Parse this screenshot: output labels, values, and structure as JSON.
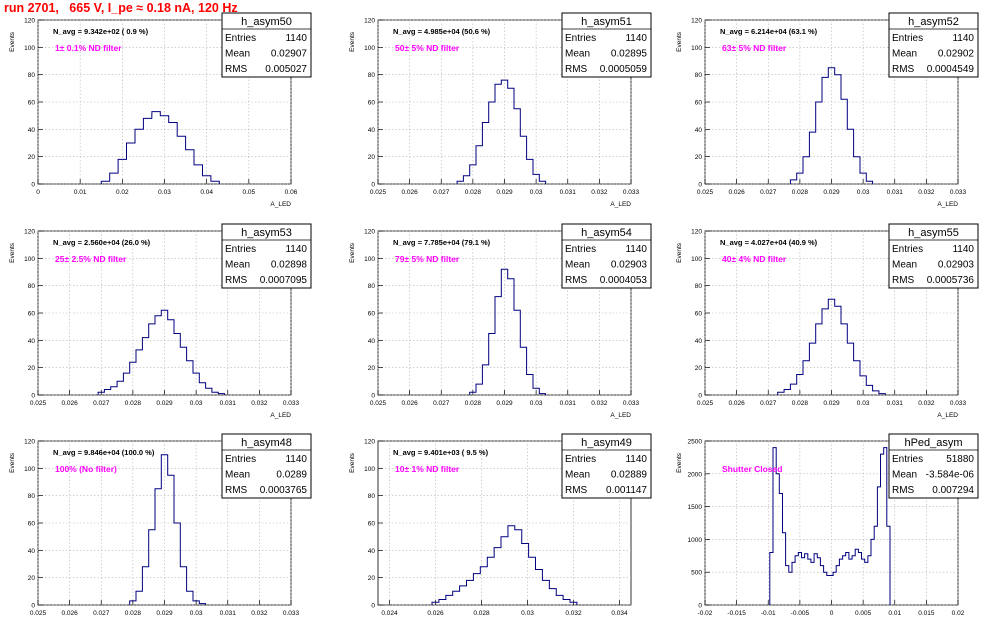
{
  "title": "run 2701,   665 V, I_pe ≈ 0.18 nA, 120 Hz",
  "colors": {
    "title": "#ff0000",
    "annotation": "#ff00ff",
    "hist": "#000080",
    "grid": "#b4b4b4",
    "axis": "#000000"
  },
  "chart_data": [
    {
      "type": "histogram",
      "name": "h_asym50",
      "ylabel": "Events",
      "xlabel": "A_LED",
      "xlim": [
        0,
        0.06
      ],
      "ylim": [
        0,
        120
      ],
      "xticks": [
        "0",
        "0.01",
        "0.02",
        "0.03",
        "0.04",
        "0.05",
        "0.06"
      ],
      "yticks": [
        "0",
        "20",
        "40",
        "60",
        "80",
        "100",
        "120"
      ],
      "navg": "N_avg = 9.342e+02 ( 0.9 %)",
      "annotation": "1± 0.1% ND filter",
      "stats": [
        [
          "Entries",
          "1140"
        ],
        [
          "Mean",
          "0.02907"
        ],
        [
          "RMS",
          "0.005027"
        ]
      ],
      "x": [
        0.016,
        0.018,
        0.02,
        0.022,
        0.024,
        0.026,
        0.028,
        0.03,
        0.032,
        0.034,
        0.036,
        0.038,
        0.04,
        0.042
      ],
      "values": [
        2,
        8,
        18,
        30,
        40,
        48,
        53,
        50,
        45,
        35,
        25,
        14,
        6,
        2
      ]
    },
    {
      "type": "histogram",
      "name": "h_asym51",
      "ylabel": "Events",
      "xlabel": "A_LED",
      "xlim": [
        0.025,
        0.033
      ],
      "ylim": [
        0,
        120
      ],
      "xticks": [
        "0.025",
        "0.026",
        "0.027",
        "0.028",
        "0.029",
        "0.03",
        "0.031",
        "0.032",
        "0.033"
      ],
      "yticks": [
        "0",
        "20",
        "40",
        "60",
        "80",
        "100",
        "120"
      ],
      "navg": "N_avg = 4.985e+04 (50.6 %)",
      "annotation": "50± 5% ND filter",
      "stats": [
        [
          "Entries",
          "1140"
        ],
        [
          "Mean",
          "0.02895"
        ],
        [
          "RMS",
          "0.0005059"
        ]
      ],
      "x": [
        0.0276,
        0.0278,
        0.028,
        0.0282,
        0.0284,
        0.0286,
        0.0288,
        0.029,
        0.0292,
        0.0294,
        0.0296,
        0.0298,
        0.03,
        0.0302
      ],
      "values": [
        2,
        6,
        14,
        28,
        45,
        60,
        73,
        76,
        70,
        55,
        35,
        18,
        7,
        2
      ]
    },
    {
      "type": "histogram",
      "name": "h_asym52",
      "ylabel": "Events",
      "xlabel": "A_LED",
      "xlim": [
        0.025,
        0.033
      ],
      "ylim": [
        0,
        120
      ],
      "xticks": [
        "0.025",
        "0.026",
        "0.027",
        "0.028",
        "0.029",
        "0.03",
        "0.031",
        "0.032",
        "0.033"
      ],
      "yticks": [
        "0",
        "20",
        "40",
        "60",
        "80",
        "100",
        "120"
      ],
      "navg": "N_avg = 6.214e+04 (63.1 %)",
      "annotation": "63± 5% ND filter",
      "stats": [
        [
          "Entries",
          "1140"
        ],
        [
          "Mean",
          "0.02902"
        ],
        [
          "RMS",
          "0.0004549"
        ]
      ],
      "x": [
        0.0278,
        0.028,
        0.0282,
        0.0284,
        0.0286,
        0.0288,
        0.029,
        0.0292,
        0.0294,
        0.0296,
        0.0298,
        0.03,
        0.0302
      ],
      "values": [
        3,
        8,
        20,
        38,
        60,
        78,
        85,
        80,
        62,
        40,
        20,
        8,
        2
      ]
    },
    {
      "type": "histogram",
      "name": "h_asym53",
      "ylabel": "Events",
      "xlabel": "A_LED",
      "xlim": [
        0.025,
        0.033
      ],
      "ylim": [
        0,
        120
      ],
      "xticks": [
        "0.025",
        "0.026",
        "0.027",
        "0.028",
        "0.029",
        "0.03",
        "0.031",
        "0.032",
        "0.033"
      ],
      "yticks": [
        "0",
        "20",
        "40",
        "60",
        "80",
        "100",
        "120"
      ],
      "navg": "N_avg = 2.560e+04 (26.0 %)",
      "annotation": "25± 2.5% ND filter",
      "stats": [
        [
          "Entries",
          "1140"
        ],
        [
          "Mean",
          "0.02898"
        ],
        [
          "RMS",
          "0.0007095"
        ]
      ],
      "x": [
        0.027,
        0.0272,
        0.0274,
        0.0276,
        0.0278,
        0.028,
        0.0282,
        0.0284,
        0.0286,
        0.0288,
        0.029,
        0.0292,
        0.0294,
        0.0296,
        0.0298,
        0.03,
        0.0302,
        0.0304,
        0.0306,
        0.0308
      ],
      "values": [
        2,
        4,
        6,
        10,
        16,
        24,
        33,
        42,
        52,
        58,
        62,
        55,
        45,
        35,
        25,
        16,
        9,
        5,
        2,
        1
      ]
    },
    {
      "type": "histogram",
      "name": "h_asym54",
      "ylabel": "Events",
      "xlabel": "A_LED",
      "xlim": [
        0.025,
        0.033
      ],
      "ylim": [
        0,
        120
      ],
      "xticks": [
        "0.025",
        "0.026",
        "0.027",
        "0.028",
        "0.029",
        "0.03",
        "0.031",
        "0.032",
        "0.033"
      ],
      "yticks": [
        "0",
        "20",
        "40",
        "60",
        "80",
        "100",
        "120"
      ],
      "navg": "N_avg = 7.785e+04 (79.1 %)",
      "annotation": "79± 5% ND filter",
      "stats": [
        [
          "Entries",
          "1140"
        ],
        [
          "Mean",
          "0.02903"
        ],
        [
          "RMS",
          "0.0004053"
        ]
      ],
      "x": [
        0.028,
        0.0282,
        0.0284,
        0.0286,
        0.0288,
        0.029,
        0.0292,
        0.0294,
        0.0296,
        0.0298,
        0.03,
        0.0302
      ],
      "values": [
        2,
        8,
        22,
        45,
        72,
        92,
        85,
        62,
        35,
        15,
        5,
        1
      ]
    },
    {
      "type": "histogram",
      "name": "h_asym55",
      "ylabel": "Events",
      "xlabel": "A_LED",
      "xlim": [
        0.025,
        0.033
      ],
      "ylim": [
        0,
        120
      ],
      "xticks": [
        "0.025",
        "0.026",
        "0.027",
        "0.028",
        "0.029",
        "0.03",
        "0.031",
        "0.032",
        "0.033"
      ],
      "yticks": [
        "0",
        "20",
        "40",
        "60",
        "80",
        "100",
        "120"
      ],
      "navg": "N_avg = 4.027e+04 (40.9 %)",
      "annotation": "40± 4% ND filter",
      "stats": [
        [
          "Entries",
          "1140"
        ],
        [
          "Mean",
          "0.02903"
        ],
        [
          "RMS",
          "0.0005736"
        ]
      ],
      "x": [
        0.0274,
        0.0276,
        0.0278,
        0.028,
        0.0282,
        0.0284,
        0.0286,
        0.0288,
        0.029,
        0.0292,
        0.0294,
        0.0296,
        0.0298,
        0.03,
        0.0302,
        0.0304,
        0.0306
      ],
      "values": [
        2,
        4,
        8,
        15,
        25,
        38,
        52,
        63,
        70,
        65,
        52,
        38,
        25,
        14,
        7,
        3,
        1
      ]
    },
    {
      "type": "histogram",
      "name": "h_asym48",
      "ylabel": "Events",
      "xlabel": "A_LED",
      "xlim": [
        0.025,
        0.033
      ],
      "ylim": [
        0,
        120
      ],
      "xticks": [
        "0.025",
        "0.026",
        "0.027",
        "0.028",
        "0.029",
        "0.03",
        "0.031",
        "0.032",
        "0.033"
      ],
      "yticks": [
        "0",
        "20",
        "40",
        "60",
        "80",
        "100",
        "120"
      ],
      "navg": "N_avg = 9.846e+04 (100.0 %)",
      "annotation": "100% (No filter)",
      "stats": [
        [
          "Entries",
          "1140"
        ],
        [
          "Mean",
          "0.0289"
        ],
        [
          "RMS",
          "0.0003765"
        ]
      ],
      "x": [
        0.028,
        0.0282,
        0.0284,
        0.0286,
        0.0288,
        0.029,
        0.0292,
        0.0294,
        0.0296,
        0.0298,
        0.03,
        0.0302
      ],
      "values": [
        3,
        10,
        28,
        55,
        85,
        110,
        95,
        60,
        28,
        10,
        3,
        1
      ]
    },
    {
      "type": "histogram",
      "name": "h_asym49",
      "ylabel": "Events",
      "xlabel": "A_LED",
      "xlim": [
        0.0235,
        0.0345
      ],
      "ylim": [
        0,
        120
      ],
      "xticks": [
        "0.024",
        "0.026",
        "0.028",
        "0.03",
        "0.032",
        "0.034"
      ],
      "yticks": [
        "0",
        "20",
        "40",
        "60",
        "80",
        "100",
        "120"
      ],
      "navg": "N_avg = 9.401e+03 ( 9.5 %)",
      "annotation": "10± 1% ND filter",
      "stats": [
        [
          "Entries",
          "1140"
        ],
        [
          "Mean",
          "0.02889"
        ],
        [
          "RMS",
          "0.001147"
        ]
      ],
      "x": [
        0.026,
        0.0263,
        0.0266,
        0.0269,
        0.0272,
        0.0275,
        0.0278,
        0.0281,
        0.0284,
        0.0287,
        0.029,
        0.0293,
        0.0296,
        0.0299,
        0.0302,
        0.0305,
        0.0308,
        0.0311,
        0.0314,
        0.0317,
        0.032
      ],
      "values": [
        2,
        4,
        7,
        10,
        14,
        18,
        23,
        28,
        35,
        42,
        50,
        58,
        55,
        45,
        35,
        26,
        18,
        12,
        7,
        4,
        2
      ]
    },
    {
      "type": "histogram",
      "name": "hPed_asym",
      "ylabel": "Events",
      "xlabel": "A_LED",
      "xlim": [
        -0.02,
        0.02
      ],
      "ylim": [
        0,
        2500
      ],
      "xticks": [
        "-0.02",
        "-0.015",
        "-0.01",
        "-0.005",
        "0",
        "0.005",
        "0.01",
        "0.015",
        "0.02"
      ],
      "yticks": [
        "0",
        "500",
        "1000",
        "1500",
        "2000",
        "2500"
      ],
      "navg": "",
      "annotation": "Shutter Closed",
      "stats": [
        [
          "Entries",
          "51880"
        ],
        [
          "Mean",
          "-3.584e-06"
        ],
        [
          "RMS",
          "0.007294"
        ]
      ],
      "x": [
        -0.0095,
        -0.009,
        -0.0085,
        -0.008,
        -0.0075,
        -0.007,
        -0.0065,
        -0.006,
        -0.0055,
        -0.005,
        -0.0045,
        -0.004,
        -0.0035,
        -0.003,
        -0.0025,
        -0.002,
        -0.0015,
        -0.001,
        -0.0005,
        0,
        0.0005,
        0.001,
        0.0015,
        0.002,
        0.0025,
        0.003,
        0.0035,
        0.004,
        0.0045,
        0.005,
        0.0055,
        0.006,
        0.0065,
        0.007,
        0.0075,
        0.008,
        0.0085,
        0.009
      ],
      "values": [
        800,
        2400,
        2000,
        1700,
        1100,
        600,
        500,
        650,
        750,
        800,
        720,
        780,
        700,
        650,
        780,
        720,
        600,
        500,
        450,
        450,
        500,
        600,
        700,
        750,
        800,
        700,
        750,
        850,
        800,
        700,
        650,
        750,
        1000,
        1200,
        1800,
        2300,
        2400,
        1200
      ]
    }
  ]
}
